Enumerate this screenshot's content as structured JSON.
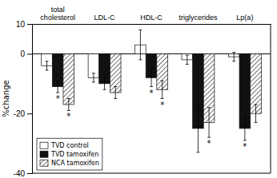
{
  "chart_data": {
    "type": "bar",
    "categories": [
      "total\ncholesterol",
      "LDL-C",
      "HDL-C",
      "triglycerides",
      "Lp(a)"
    ],
    "series": [
      {
        "name": "TVD control",
        "color": "#ffffff",
        "values": [
          -4,
          -8,
          3,
          -2,
          -1
        ],
        "errors": [
          1.5,
          1.5,
          5,
          1.5,
          1.5
        ],
        "annotations": [
          null,
          null,
          null,
          null,
          null
        ]
      },
      {
        "name": "TVD tamoxifen",
        "color": "#111111",
        "values": [
          -11,
          -10,
          -8,
          -25,
          -25
        ],
        "errors": [
          2,
          2,
          3,
          8,
          4
        ],
        "annotations": [
          "*",
          null,
          "*",
          null,
          "*"
        ]
      },
      {
        "name": "NCA tamoxifen",
        "color": "#ffffff",
        "values": [
          -17,
          -13,
          -12,
          -23,
          -20
        ],
        "errors": [
          2,
          2,
          3,
          5,
          3
        ],
        "annotations": [
          "*",
          null,
          "*",
          "*",
          null
        ]
      }
    ],
    "ylabel": "%change",
    "ylim": [
      -40,
      10
    ],
    "yticks": [
      -40,
      -20,
      0,
      10
    ],
    "grid": false,
    "legend": "lower left"
  }
}
